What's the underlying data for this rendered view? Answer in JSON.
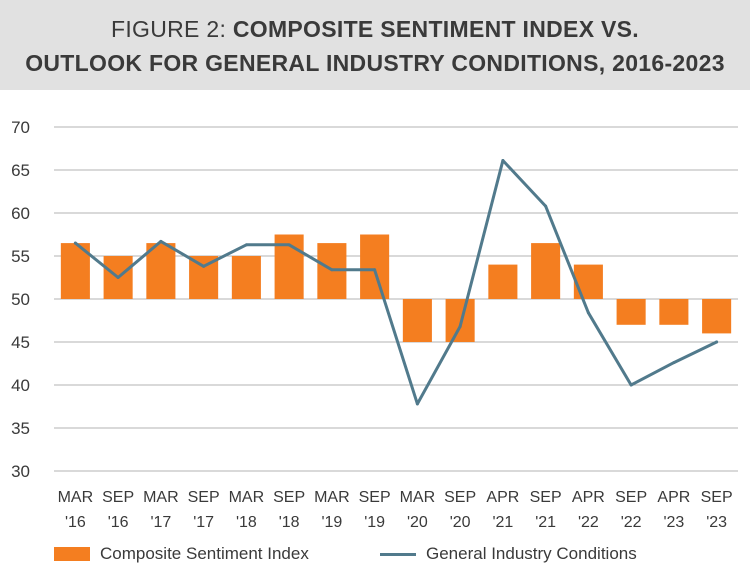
{
  "title": {
    "prefix": "FIGURE 2:",
    "line1_bold": "COMPOSITE SENTIMENT INDEX VS.",
    "line2": "OUTLOOK FOR GENERAL INDUSTRY CONDITIONS, 2016-2023"
  },
  "colors": {
    "bar": "#f47e20",
    "line": "#517a8c",
    "grid": "#b3b3b3",
    "title_band": "#e1e1e1"
  },
  "chart_data": {
    "type": "bar",
    "title": "FIGURE 2: COMPOSITE SENTIMENT INDEX VS. OUTLOOK FOR GENERAL INDUSTRY CONDITIONS, 2016-2023",
    "categories": [
      [
        "MAR",
        "'16"
      ],
      [
        "SEP",
        "'16"
      ],
      [
        "MAR",
        "'17"
      ],
      [
        "SEP",
        "'17"
      ],
      [
        "MAR",
        "'18"
      ],
      [
        "SEP",
        "'18"
      ],
      [
        "MAR",
        "'19"
      ],
      [
        "SEP",
        "'19"
      ],
      [
        "MAR",
        "'20"
      ],
      [
        "SEP",
        "'20"
      ],
      [
        "APR",
        "'21"
      ],
      [
        "SEP",
        "'21"
      ],
      [
        "APR",
        "'22"
      ],
      [
        "SEP",
        "'22"
      ],
      [
        "APR",
        "'23"
      ],
      [
        "SEP",
        "'23"
      ]
    ],
    "baseline": 50,
    "ylim": [
      30,
      70
    ],
    "yticks": [
      30,
      35,
      40,
      45,
      50,
      55,
      60,
      65,
      70
    ],
    "grid": true,
    "legend_position": "bottom",
    "series": [
      {
        "name": "Composite Sentiment Index",
        "type": "bar",
        "values": [
          56.5,
          55,
          56.5,
          55,
          55,
          57.5,
          56.5,
          57.5,
          45,
          45,
          54,
          56.5,
          54,
          47,
          47,
          46
        ]
      },
      {
        "name": "General Industry Conditions",
        "type": "line",
        "values": [
          56.5,
          52.5,
          56.7,
          53.8,
          56.3,
          56.3,
          53.4,
          53.4,
          37.8,
          46.8,
          66.1,
          60.8,
          48.4,
          40,
          42.6,
          45
        ]
      }
    ]
  }
}
